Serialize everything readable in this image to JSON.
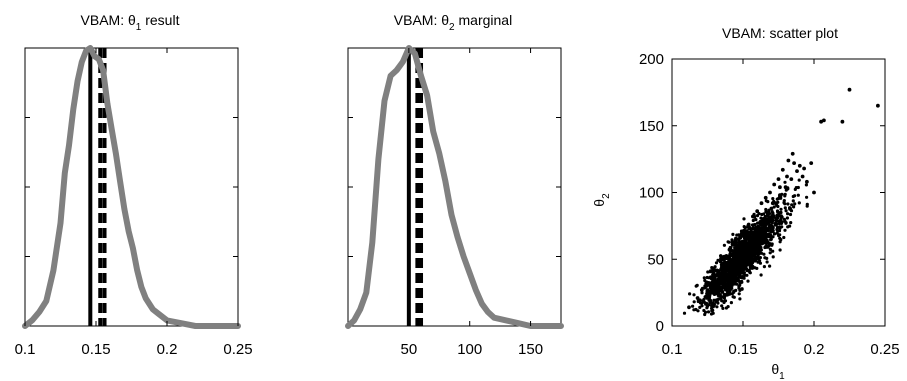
{
  "chart_data": [
    {
      "type": "line",
      "title": "VBAM: θ1 result",
      "title_parts": {
        "prefix": "VBAM: θ",
        "sub": "1",
        "suffix": " result"
      },
      "xlim": [
        0.1,
        0.25
      ],
      "xticks": [
        0.1,
        0.15,
        0.2,
        0.25
      ],
      "xtick_labels": [
        "0.1",
        "0.15",
        "0.2",
        "0.25"
      ],
      "ylim": [
        0,
        1
      ],
      "y_ticks_unlabeled": [
        0.25,
        0.5,
        0.75
      ],
      "series": [
        {
          "style": "thick-gray-line",
          "color": "#808080",
          "x": [
            0.1,
            0.105,
            0.11,
            0.115,
            0.12,
            0.125,
            0.128,
            0.131,
            0.134,
            0.137,
            0.14,
            0.143,
            0.146,
            0.149,
            0.152,
            0.155,
            0.158,
            0.161,
            0.164,
            0.167,
            0.17,
            0.173,
            0.176,
            0.179,
            0.182,
            0.185,
            0.19,
            0.195,
            0.2,
            0.21,
            0.22,
            0.25
          ],
          "y": [
            0.0,
            0.02,
            0.05,
            0.09,
            0.2,
            0.37,
            0.55,
            0.65,
            0.78,
            0.88,
            0.95,
            0.99,
            1.0,
            0.97,
            0.96,
            0.92,
            0.8,
            0.71,
            0.62,
            0.52,
            0.42,
            0.34,
            0.28,
            0.2,
            0.14,
            0.1,
            0.06,
            0.04,
            0.02,
            0.01,
            0.0,
            0.0
          ]
        }
      ],
      "vlines": [
        {
          "x": 0.146,
          "style": "solid",
          "color": "#000000"
        },
        {
          "x": 0.153,
          "style": "dashed",
          "color": "#000000"
        },
        {
          "x": 0.156,
          "style": "dashed",
          "color": "#000000"
        }
      ]
    },
    {
      "type": "line",
      "title": "VBAM: θ2 marginal",
      "title_parts": {
        "prefix": "VBAM: θ",
        "sub": "2",
        "suffix": " marginal"
      },
      "xlim": [
        0,
        175
      ],
      "xticks": [
        50,
        100,
        150
      ],
      "xtick_labels": [
        "50",
        "100",
        "150"
      ],
      "ylim": [
        0,
        1
      ],
      "y_ticks_unlabeled": [
        0.25,
        0.5,
        0.75
      ],
      "series": [
        {
          "style": "thick-gray-line",
          "color": "#808080",
          "x": [
            0,
            5,
            10,
            15,
            20,
            25,
            30,
            35,
            40,
            45,
            50,
            55,
            60,
            65,
            70,
            75,
            80,
            85,
            90,
            95,
            100,
            105,
            110,
            115,
            120,
            130,
            140,
            150,
            175
          ],
          "y": [
            0.0,
            0.02,
            0.06,
            0.12,
            0.3,
            0.6,
            0.81,
            0.9,
            0.92,
            0.95,
            1.0,
            0.98,
            0.9,
            0.83,
            0.7,
            0.62,
            0.52,
            0.4,
            0.32,
            0.25,
            0.19,
            0.13,
            0.08,
            0.05,
            0.03,
            0.02,
            0.01,
            0.0,
            0.0
          ]
        }
      ],
      "vlines": [
        {
          "x": 50,
          "style": "solid",
          "color": "#000000"
        },
        {
          "x": 57,
          "style": "dashed",
          "color": "#000000"
        },
        {
          "x": 60,
          "style": "dashed",
          "color": "#000000"
        }
      ]
    },
    {
      "type": "scatter",
      "title": "VBAM: scatter plot",
      "xlim": [
        0.1,
        0.25
      ],
      "ylim": [
        0,
        200
      ],
      "xticks": [
        0.1,
        0.15,
        0.2,
        0.25
      ],
      "xtick_labels": [
        "0.1",
        "0.15",
        "0.2",
        "0.25"
      ],
      "yticks": [
        0,
        50,
        100,
        150,
        200
      ],
      "ytick_labels": [
        "0",
        "50",
        "100",
        "150",
        "200"
      ],
      "xlabel": {
        "symbol": "θ",
        "sub": "1"
      },
      "ylabel": {
        "symbol": "θ",
        "sub": "2"
      },
      "point_color": "#000000",
      "points": [
        [
          0.112,
          14
        ],
        [
          0.118,
          21
        ],
        [
          0.121,
          27
        ],
        [
          0.124,
          22
        ],
        [
          0.126,
          31
        ],
        [
          0.128,
          25
        ],
        [
          0.129,
          36
        ],
        [
          0.131,
          30
        ],
        [
          0.132,
          41
        ],
        [
          0.133,
          28
        ],
        [
          0.134,
          38
        ],
        [
          0.135,
          46
        ],
        [
          0.136,
          33
        ],
        [
          0.137,
          52
        ],
        [
          0.138,
          42
        ],
        [
          0.139,
          36
        ],
        [
          0.14,
          48
        ],
        [
          0.141,
          57
        ],
        [
          0.142,
          40
        ],
        [
          0.143,
          50
        ],
        [
          0.144,
          62
        ],
        [
          0.145,
          44
        ],
        [
          0.146,
          55
        ],
        [
          0.147,
          49
        ],
        [
          0.148,
          66
        ],
        [
          0.149,
          58
        ],
        [
          0.15,
          52
        ],
        [
          0.151,
          71
        ],
        [
          0.152,
          61
        ],
        [
          0.153,
          55
        ],
        [
          0.154,
          76
        ],
        [
          0.155,
          66
        ],
        [
          0.156,
          60
        ],
        [
          0.157,
          82
        ],
        [
          0.158,
          70
        ],
        [
          0.159,
          63
        ],
        [
          0.16,
          86
        ],
        [
          0.161,
          74
        ],
        [
          0.162,
          68
        ],
        [
          0.163,
          92
        ],
        [
          0.164,
          79
        ],
        [
          0.165,
          72
        ],
        [
          0.166,
          96
        ],
        [
          0.168,
          84
        ],
        [
          0.169,
          100
        ],
        [
          0.17,
          88
        ],
        [
          0.172,
          106
        ],
        [
          0.173,
          92
        ],
        [
          0.175,
          110
        ],
        [
          0.176,
          98
        ],
        [
          0.178,
          117
        ],
        [
          0.18,
          104
        ],
        [
          0.182,
          124
        ],
        [
          0.184,
          110
        ],
        [
          0.185,
          129
        ],
        [
          0.188,
          116
        ],
        [
          0.19,
          120
        ],
        [
          0.192,
          112
        ],
        [
          0.195,
          108
        ],
        [
          0.198,
          122
        ],
        [
          0.2,
          100
        ],
        [
          0.205,
          153
        ],
        [
          0.207,
          154
        ],
        [
          0.22,
          153
        ],
        [
          0.225,
          177
        ],
        [
          0.245,
          165
        ],
        [
          0.127,
          19
        ],
        [
          0.133,
          34
        ],
        [
          0.139,
          44
        ],
        [
          0.143,
          37
        ],
        [
          0.147,
          59
        ],
        [
          0.152,
          48
        ],
        [
          0.157,
          70
        ],
        [
          0.161,
          64
        ],
        [
          0.166,
          80
        ],
        [
          0.171,
          92
        ],
        [
          0.176,
          104
        ],
        [
          0.181,
          112
        ],
        [
          0.186,
          122
        ],
        [
          0.193,
          118
        ]
      ],
      "cloud": {
        "seed": 7,
        "n": 1600,
        "x_mean": 0.15,
        "x_sd": 0.0145,
        "y_mean": 52,
        "slope": 1140,
        "resid_sd": 9
      }
    }
  ]
}
